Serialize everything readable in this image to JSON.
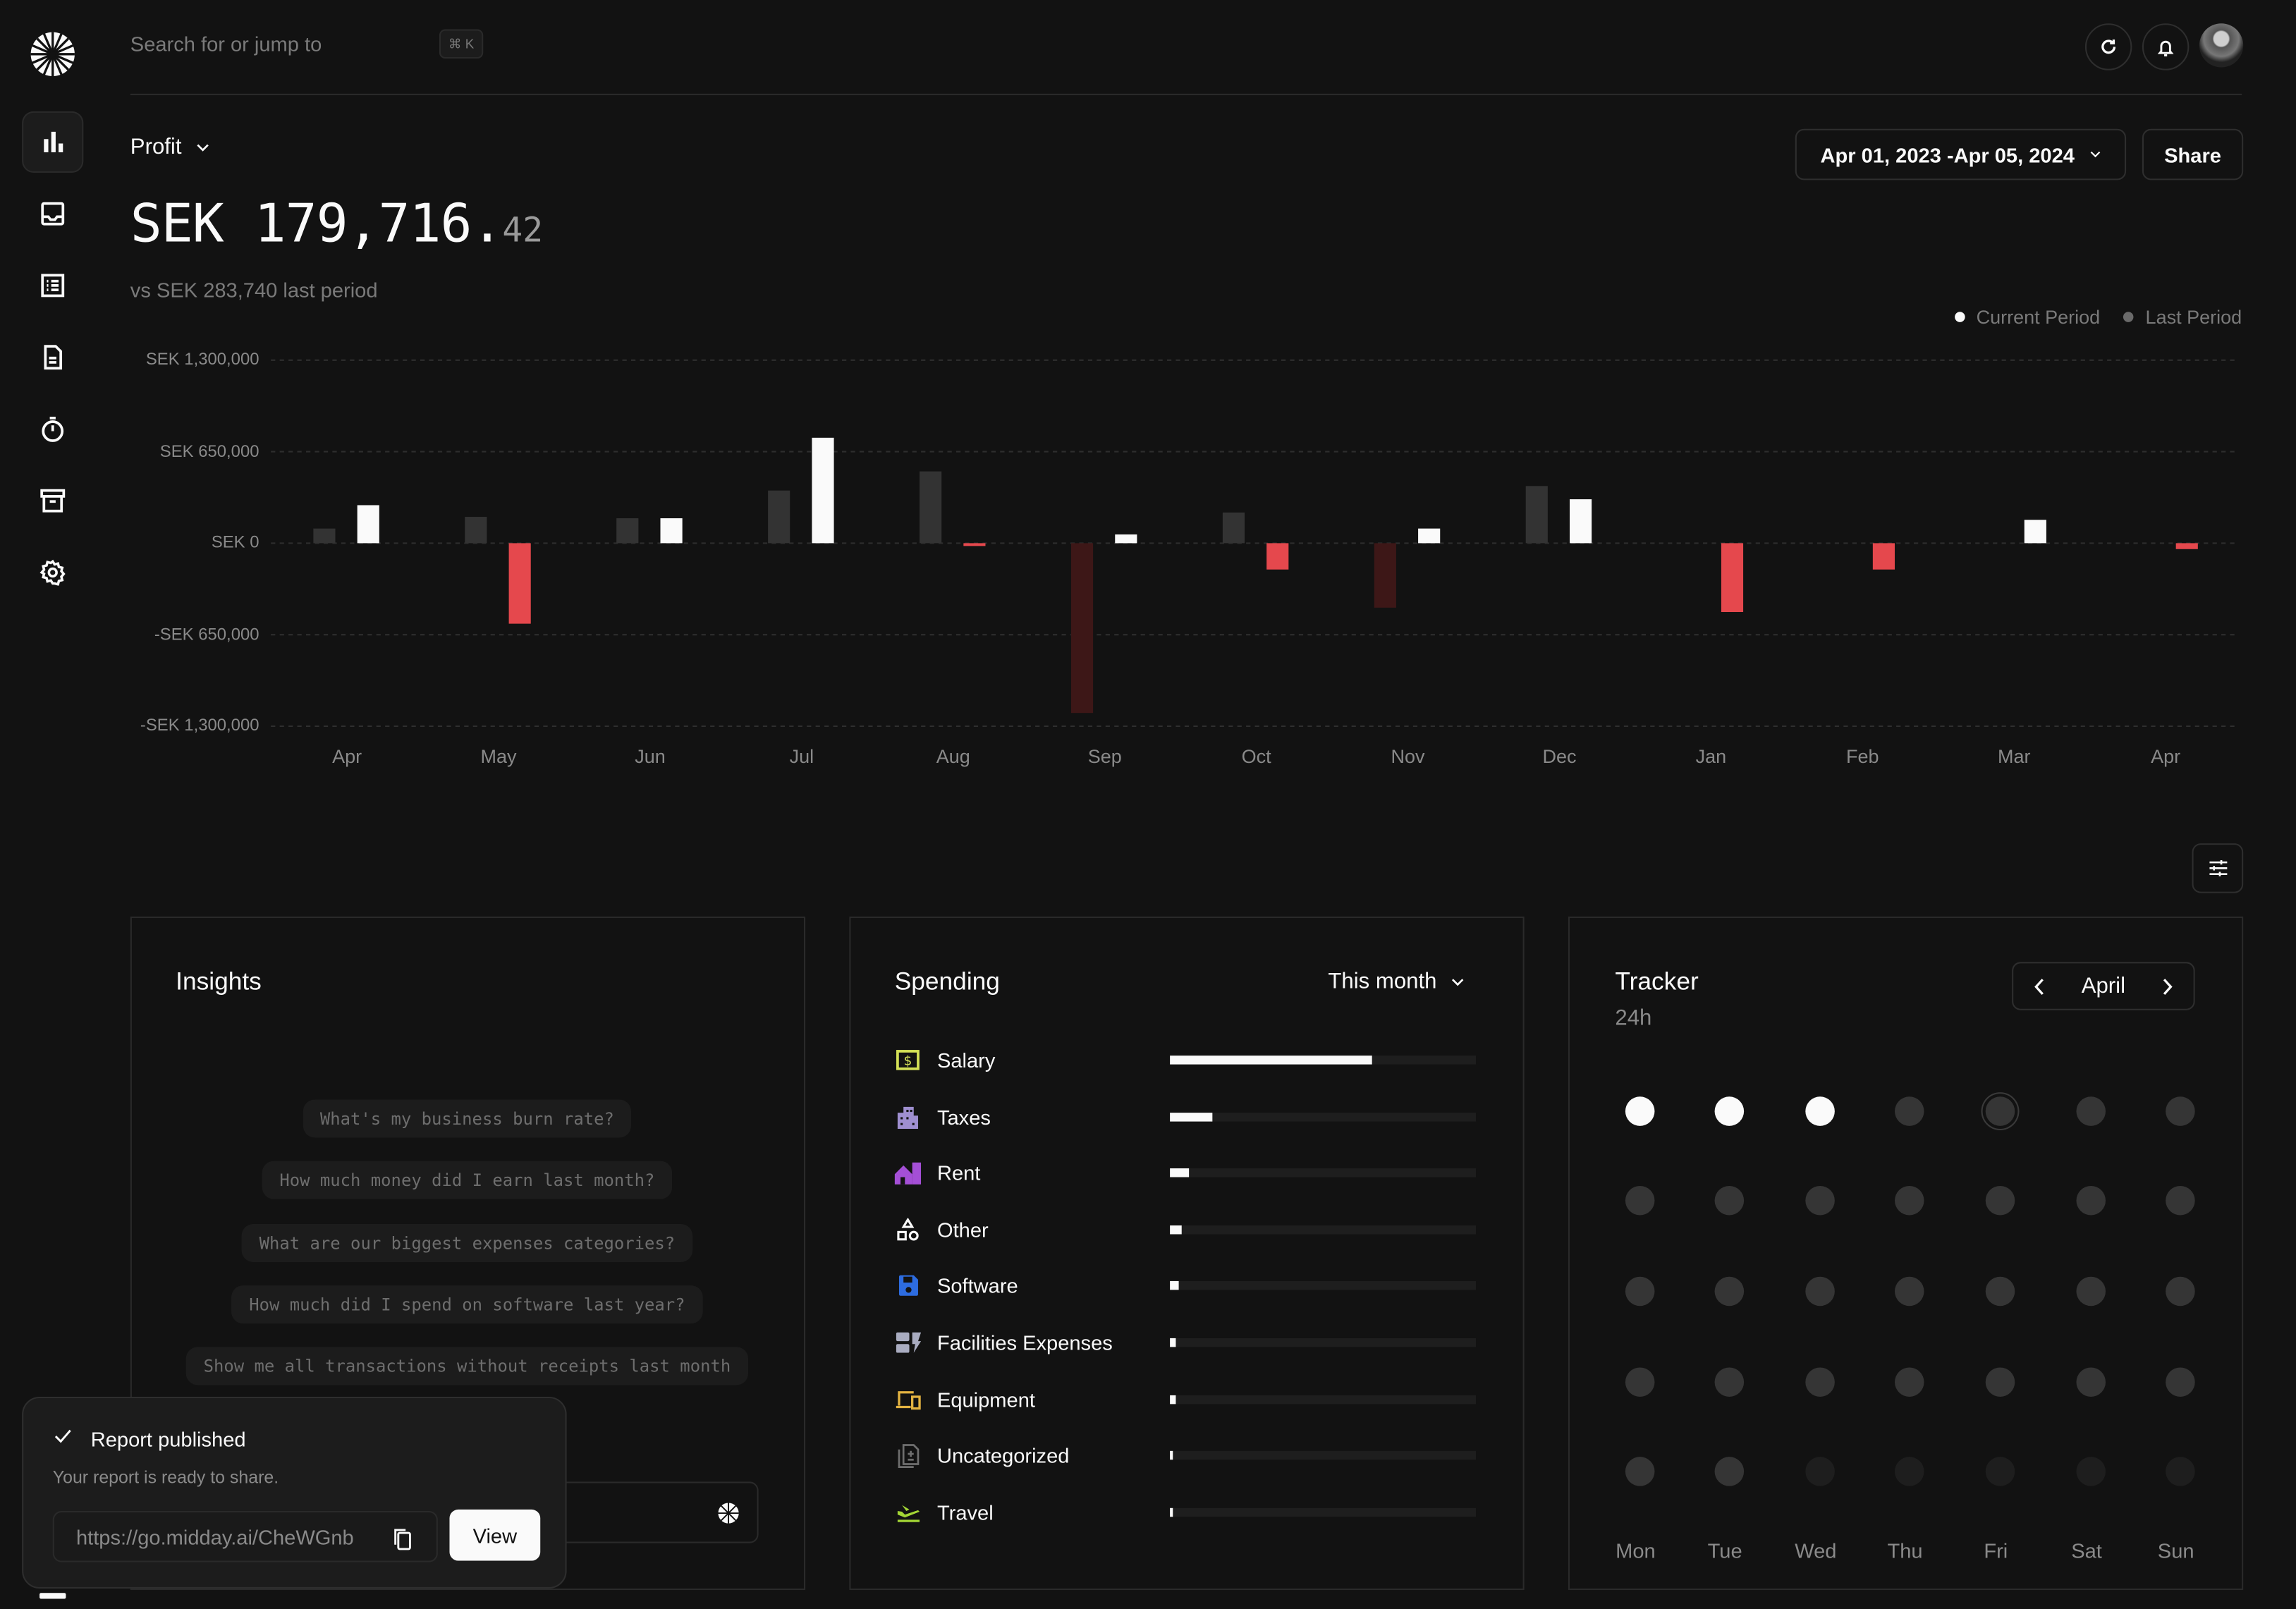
{
  "search": {
    "placeholder": "Search for or jump to",
    "shortcut": "⌘ K"
  },
  "sidebar": {
    "items": [
      {
        "name": "overview",
        "icon": "bar-chart-icon",
        "active": true
      },
      {
        "name": "inbox",
        "icon": "inbox-icon"
      },
      {
        "name": "transactions",
        "icon": "list-icon"
      },
      {
        "name": "invoices",
        "icon": "document-icon"
      },
      {
        "name": "tracker",
        "icon": "timer-icon"
      },
      {
        "name": "vault",
        "icon": "archive-icon"
      },
      {
        "name": "settings",
        "icon": "gear-icon"
      }
    ]
  },
  "header": {
    "refresh_icon": "refresh-icon",
    "bell_icon": "bell-icon",
    "avatar": "user-avatar"
  },
  "overview": {
    "metric_label": "Profit",
    "amount_main": "SEK 179,716.",
    "amount_decimals": "42",
    "comparison": "vs SEK 283,740 last period",
    "date_range": "Apr 01, 2023 -Apr 05, 2024",
    "share_label": "Share"
  },
  "chart_data": {
    "type": "bar",
    "categories": [
      "Apr",
      "May",
      "Jun",
      "Jul",
      "Aug",
      "Sep",
      "Oct",
      "Nov",
      "Dec",
      "Jan",
      "Feb",
      "Mar",
      "Apr"
    ],
    "series": [
      {
        "name": "Current Period",
        "values": [
          270000,
          -572000,
          177000,
          749000,
          -20000,
          62000,
          -187000,
          104000,
          312000,
          -489000,
          -187000,
          166000,
          -42000
        ]
      },
      {
        "name": "Last Period",
        "values": [
          104000,
          187000,
          177000,
          374000,
          510000,
          -1206000,
          218000,
          -458000,
          406000,
          0,
          0,
          0,
          0
        ]
      }
    ],
    "yticks": [
      "SEK 1,300,000",
      "SEK 650,000",
      "SEK 0",
      "-SEK 650,000",
      "-SEK 1,300,000"
    ],
    "ytick_values": [
      1300000,
      650000,
      0,
      -650000,
      -1300000
    ],
    "ylim": [
      -1300000,
      1300000
    ],
    "grid": true,
    "legend": "top-right",
    "colors": {
      "current_positive": "#fafafa",
      "current_negative": "#e5484d",
      "last_positive": "#333333",
      "last_negative": "#3d1717"
    }
  },
  "insights": {
    "title": "Insights",
    "suggestions": [
      "What's my business burn rate?",
      "How much money did I earn last month?",
      "What are our biggest expenses categories?",
      "How much did I spend on software last year?",
      "Show me all transactions without receipts last month"
    ]
  },
  "spending": {
    "title": "Spending",
    "period": "This month",
    "items": [
      {
        "label": "Salary",
        "icon": "salary-icon",
        "color": "#d4e157",
        "share": 0.66
      },
      {
        "label": "Taxes",
        "icon": "building-icon",
        "color": "#9f8fd0",
        "share": 0.14
      },
      {
        "label": "Rent",
        "icon": "house-icon",
        "color": "#a44fd6",
        "share": 0.06
      },
      {
        "label": "Other",
        "icon": "shapes-icon",
        "color": "#fafafa",
        "share": 0.04
      },
      {
        "label": "Software",
        "icon": "floppy-icon",
        "color": "#2d6ce0",
        "share": 0.03
      },
      {
        "label": "Facilities Expenses",
        "icon": "facilities-icon",
        "color": "#a9acc0",
        "share": 0.02
      },
      {
        "label": "Equipment",
        "icon": "devices-icon",
        "color": "#e3b341",
        "share": 0.02
      },
      {
        "label": "Uncategorized",
        "icon": "document-plus-icon",
        "color": "#6e6e6e",
        "share": 0.01
      },
      {
        "label": "Travel",
        "icon": "plane-icon",
        "color": "#a3d635",
        "share": 0.01
      }
    ]
  },
  "tracker": {
    "title": "Tracker",
    "total": "24h",
    "month": "April",
    "weekdays": [
      "Mon",
      "Tue",
      "Wed",
      "Thu",
      "Fri",
      "Sat",
      "Sun"
    ],
    "tracked_days": [
      1,
      2,
      3
    ],
    "today": 5,
    "days_in_month": 30
  },
  "toast": {
    "title": "Report published",
    "message": "Your report is ready to share.",
    "url": "https://go.midday.ai/CheWGnb",
    "view_label": "View"
  }
}
